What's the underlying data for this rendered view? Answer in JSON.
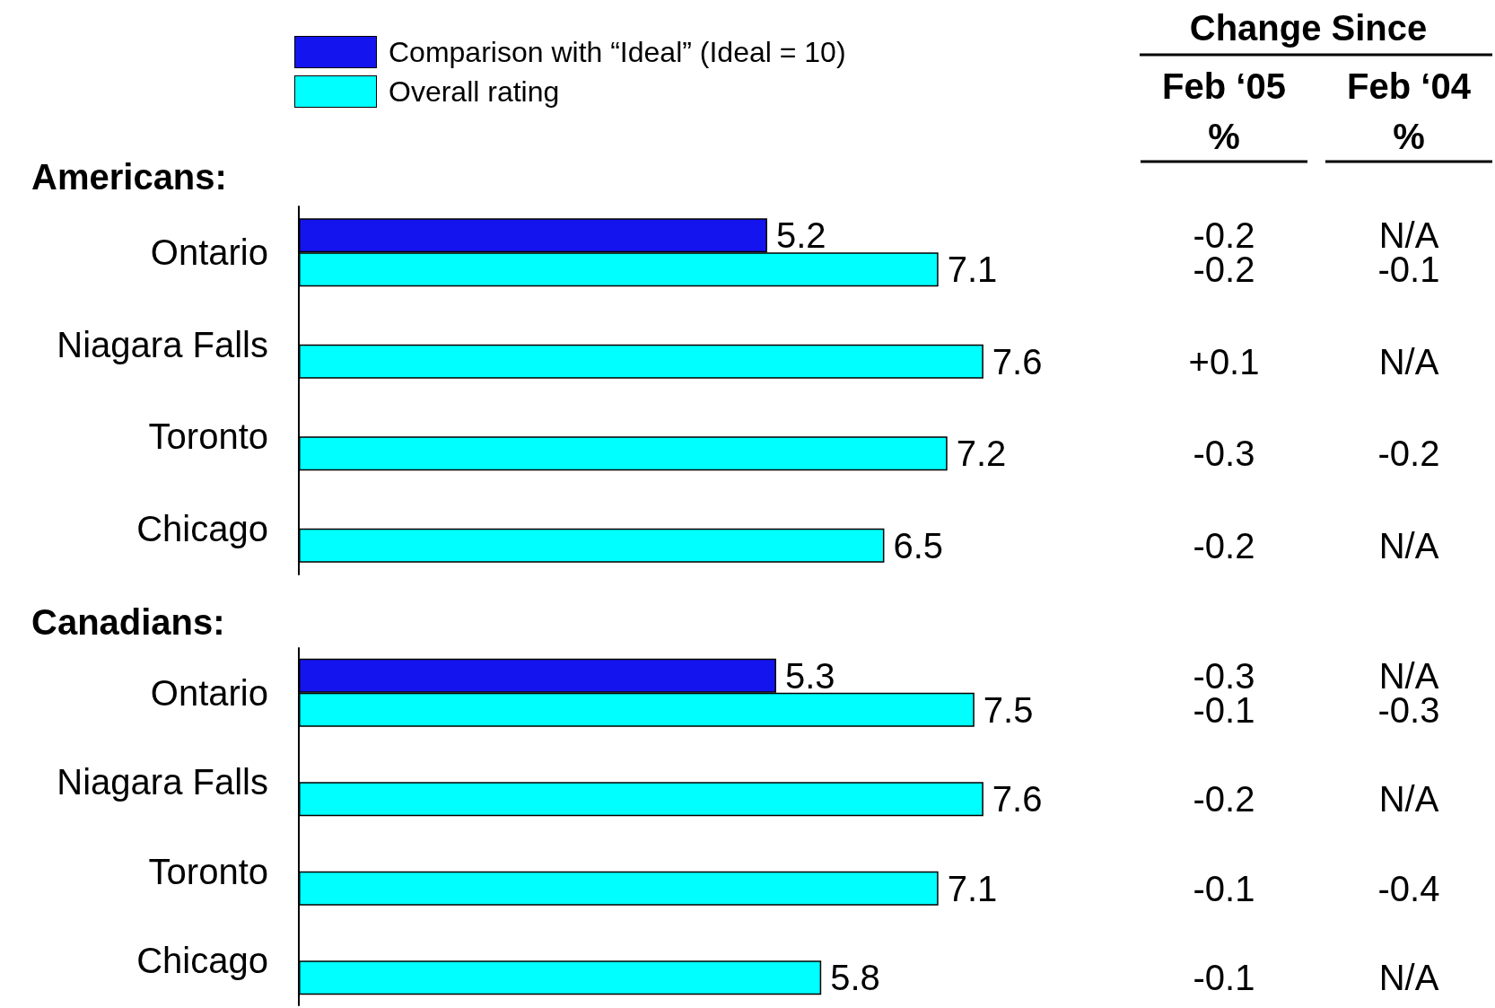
{
  "chart_data": [
    {
      "type": "bar",
      "orientation": "horizontal",
      "title": "Americans:",
      "categories": [
        "Ontario",
        "Niagara Falls",
        "Toronto",
        "Chicago"
      ],
      "legend": "top",
      "data_labels": true,
      "series": [
        {
          "name": "Comparison with “Ideal” (Ideal = 10)",
          "color": "#1414ef",
          "values": [
            5.2,
            null,
            null,
            null
          ]
        },
        {
          "name": "Overall rating",
          "color": "#00ffff",
          "values": [
            7.1,
            7.6,
            7.2,
            6.5
          ]
        }
      ],
      "annotations": [
        "-0.2",
        "N/A",
        "-0.2",
        "-0.1",
        "+0.1",
        "N/A",
        "-0.3",
        "-0.2",
        "-0.2",
        "N/A"
      ]
    },
    {
      "type": "bar",
      "orientation": "horizontal",
      "title": "Canadians:",
      "categories": [
        "Ontario",
        "Niagara Falls",
        "Toronto",
        "Chicago"
      ],
      "data_labels": true,
      "series": [
        {
          "color": "#1414ef",
          "values": [
            5.3,
            null,
            null,
            null
          ]
        },
        {
          "color": "#00ffff",
          "values": [
            7.5,
            7.6,
            7.1,
            5.8
          ]
        }
      ],
      "annotations": [
        "-0.3",
        "N/A",
        "-0.1",
        "-0.3",
        "-0.2",
        "N/A",
        "-0.1",
        "-0.4",
        "-0.1",
        "N/A"
      ]
    },
    {
      "type": "other",
      "title": "Change Since",
      "annotations": [
        "Feb ‘05\n%",
        "Feb ‘04\n%"
      ]
    }
  ]
}
